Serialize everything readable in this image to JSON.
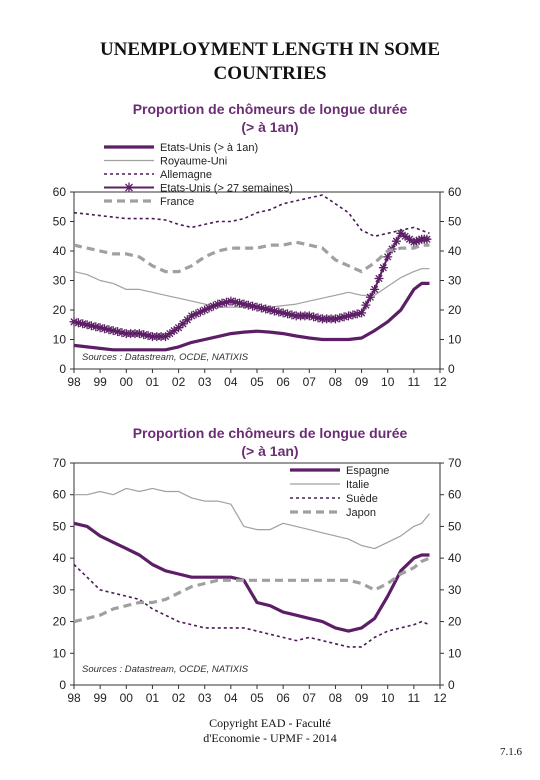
{
  "page": {
    "title_line1": "UNEMPLOYMENT LENGTH IN SOME",
    "title_line2": "COUNTRIES",
    "footer_line1": "Copyright EAD - Faculté",
    "footer_line2": "d'Economie - UPMF - 2014",
    "page_number": "7.1.6"
  },
  "colors": {
    "title": "#6b2d74",
    "dark": "#5c1f66",
    "grey": "#a0a0a0",
    "darkdash": "#4a1a56"
  },
  "chart_data": [
    {
      "type": "line",
      "title": "Proportion de chômeurs de longue durée",
      "subtitle": "(> à 1an)",
      "source": "Sources : Datastream, OCDE, NATIXIS",
      "x_ticks": [
        "98",
        "99",
        "00",
        "01",
        "02",
        "03",
        "04",
        "05",
        "06",
        "07",
        "08",
        "09",
        "10",
        "11",
        "12"
      ],
      "x_range": [
        1998,
        2012
      ],
      "ylim": [
        0,
        60
      ],
      "y_ticks": [
        0,
        10,
        20,
        30,
        40,
        50,
        60
      ],
      "legend_position": "top",
      "series": [
        {
          "name": "Etats-Unis (> à 1an)",
          "style": "thick-dark",
          "x": [
            1998,
            1998.5,
            1999,
            1999.5,
            2000,
            2000.5,
            2001,
            2001.5,
            2002,
            2002.5,
            2003,
            2003.5,
            2004,
            2004.5,
            2005,
            2005.5,
            2006,
            2006.5,
            2007,
            2007.5,
            2008,
            2008.5,
            2009,
            2009.5,
            2010,
            2010.5,
            2011,
            2011.3,
            2011.6
          ],
          "y": [
            8,
            7.5,
            7,
            6.5,
            6.5,
            6.5,
            6.5,
            6.5,
            7.5,
            9,
            10,
            11,
            12,
            12.5,
            12.8,
            12.5,
            12,
            11.2,
            10.5,
            10,
            10,
            10,
            10.5,
            13,
            16,
            20,
            27,
            29,
            29
          ]
        },
        {
          "name": "Royaume-Uni",
          "style": "thin-grey",
          "x": [
            1998,
            1998.5,
            1999,
            1999.5,
            2000,
            2000.5,
            2001,
            2001.5,
            2002,
            2002.5,
            2003,
            2003.5,
            2004,
            2004.5,
            2005,
            2005.5,
            2006,
            2006.5,
            2007,
            2007.5,
            2008,
            2008.5,
            2009,
            2009.5,
            2010,
            2010.5,
            2011,
            2011.3,
            2011.6
          ],
          "y": [
            33,
            32,
            30,
            29,
            27,
            27,
            26,
            25,
            24,
            23,
            22,
            21,
            21,
            21,
            21,
            21,
            21.5,
            22,
            23,
            24,
            25,
            26,
            25,
            25,
            28,
            31,
            33,
            34,
            34
          ]
        },
        {
          "name": "Allemagne",
          "style": "dotted-dark",
          "x": [
            1998,
            1998.5,
            1999,
            1999.5,
            2000,
            2000.5,
            2001,
            2001.5,
            2002,
            2002.5,
            2003,
            2003.5,
            2004,
            2004.5,
            2005,
            2005.5,
            2006,
            2006.5,
            2007,
            2007.5,
            2008,
            2008.5,
            2009,
            2009.5,
            2010,
            2010.5,
            2011,
            2011.3,
            2011.6
          ],
          "y": [
            53,
            52.5,
            52,
            51.5,
            51,
            51,
            51,
            50.5,
            49,
            48,
            49,
            50,
            50,
            51,
            53,
            54,
            56,
            57,
            58,
            59,
            56,
            53,
            47,
            45,
            46,
            47,
            48,
            47,
            46
          ]
        },
        {
          "name": "Etats-Unis (> 27 semaines)",
          "style": "star-dark",
          "x": [
            1998,
            1998.5,
            1999,
            1999.5,
            2000,
            2000.5,
            2001,
            2001.5,
            2002,
            2002.5,
            2003,
            2003.5,
            2004,
            2004.5,
            2005,
            2005.5,
            2006,
            2006.5,
            2007,
            2007.5,
            2008,
            2008.5,
            2009,
            2009.5,
            2010,
            2010.5,
            2011,
            2011.3,
            2011.6
          ],
          "y": [
            16,
            15,
            14,
            13,
            12,
            12,
            11,
            11,
            14,
            18,
            20,
            22,
            23,
            22,
            21,
            20,
            19,
            18,
            18,
            17,
            17,
            18,
            19,
            27,
            38,
            46,
            43,
            44,
            44
          ]
        },
        {
          "name": "France",
          "style": "dashed-grey",
          "x": [
            1998,
            1998.5,
            1999,
            1999.5,
            2000,
            2000.5,
            2001,
            2001.5,
            2002,
            2002.5,
            2003,
            2003.5,
            2004,
            2004.5,
            2005,
            2005.5,
            2006,
            2006.5,
            2007,
            2007.5,
            2008,
            2008.5,
            2009,
            2009.5,
            2010,
            2010.5,
            2011,
            2011.3,
            2011.6
          ],
          "y": [
            42,
            41,
            40,
            39,
            39,
            38,
            35,
            33,
            33,
            35,
            38,
            40,
            41,
            41,
            41,
            42,
            42,
            43,
            42,
            41,
            37,
            35,
            33,
            36,
            40,
            41,
            41,
            42,
            42
          ]
        }
      ]
    },
    {
      "type": "line",
      "title": "Proportion de chômeurs de longue durée",
      "subtitle": "(> à 1an)",
      "source": "Sources : Datastream, OCDE, NATIXIS",
      "x_ticks": [
        "98",
        "99",
        "00",
        "01",
        "02",
        "03",
        "04",
        "05",
        "06",
        "07",
        "08",
        "09",
        "10",
        "11",
        "12"
      ],
      "x_range": [
        1998,
        2012
      ],
      "ylim": [
        0,
        70
      ],
      "y_ticks": [
        0,
        10,
        20,
        30,
        40,
        50,
        60,
        70
      ],
      "legend_position": "top-right",
      "series": [
        {
          "name": "Espagne",
          "style": "thick-dark",
          "x": [
            1998,
            1998.5,
            1999,
            1999.5,
            2000,
            2000.5,
            2001,
            2001.5,
            2002,
            2002.5,
            2003,
            2003.5,
            2004,
            2004.5,
            2005,
            2005.5,
            2006,
            2006.5,
            2007,
            2007.5,
            2008,
            2008.5,
            2009,
            2009.5,
            2010,
            2010.5,
            2011,
            2011.3,
            2011.6
          ],
          "y": [
            51,
            50,
            47,
            45,
            43,
            41,
            38,
            36,
            35,
            34,
            34,
            34,
            34,
            33,
            26,
            25,
            23,
            22,
            21,
            20,
            18,
            17,
            18,
            21,
            28,
            36,
            40,
            41,
            41
          ]
        },
        {
          "name": "Italie",
          "style": "thin-grey",
          "x": [
            1998,
            1998.5,
            1999,
            1999.5,
            2000,
            2000.5,
            2001,
            2001.5,
            2002,
            2002.5,
            2003,
            2003.5,
            2004,
            2004.5,
            2005,
            2005.5,
            2006,
            2006.5,
            2007,
            2007.5,
            2008,
            2008.5,
            2009,
            2009.5,
            2010,
            2010.5,
            2011,
            2011.3,
            2011.6
          ],
          "y": [
            60,
            60,
            61,
            60,
            62,
            61,
            62,
            61,
            61,
            59,
            58,
            58,
            57,
            50,
            49,
            49,
            51,
            50,
            49,
            48,
            47,
            46,
            44,
            43,
            45,
            47,
            50,
            51,
            54
          ]
        },
        {
          "name": "Suède",
          "style": "dotted-dark",
          "x": [
            1998,
            1998.5,
            1999,
            1999.5,
            2000,
            2000.5,
            2001,
            2001.5,
            2002,
            2002.5,
            2003,
            2003.5,
            2004,
            2004.5,
            2005,
            2005.5,
            2006,
            2006.5,
            2007,
            2007.5,
            2008,
            2008.5,
            2009,
            2009.5,
            2010,
            2010.5,
            2011,
            2011.3,
            2011.6
          ],
          "y": [
            38,
            34,
            30,
            29,
            28,
            27,
            24,
            22,
            20,
            19,
            18,
            18,
            18,
            18,
            17,
            16,
            15,
            14,
            15,
            14,
            13,
            12,
            12,
            15,
            17,
            18,
            19,
            20,
            19
          ]
        },
        {
          "name": "Japon",
          "style": "dashed-grey",
          "x": [
            1998,
            1998.5,
            1999,
            1999.5,
            2000,
            2000.5,
            2001,
            2001.5,
            2002,
            2002.5,
            2003,
            2003.5,
            2004,
            2004.5,
            2005,
            2005.5,
            2006,
            2006.5,
            2007,
            2007.5,
            2008,
            2008.5,
            2009,
            2009.5,
            2010,
            2010.5,
            2011,
            2011.3,
            2011.6
          ],
          "y": [
            20,
            21,
            22,
            24,
            25,
            26,
            26,
            27,
            29,
            31,
            32,
            33,
            33,
            33,
            33,
            33,
            33,
            33,
            33,
            33,
            33,
            33,
            32,
            30,
            32,
            35,
            37,
            39,
            40
          ]
        }
      ]
    }
  ]
}
